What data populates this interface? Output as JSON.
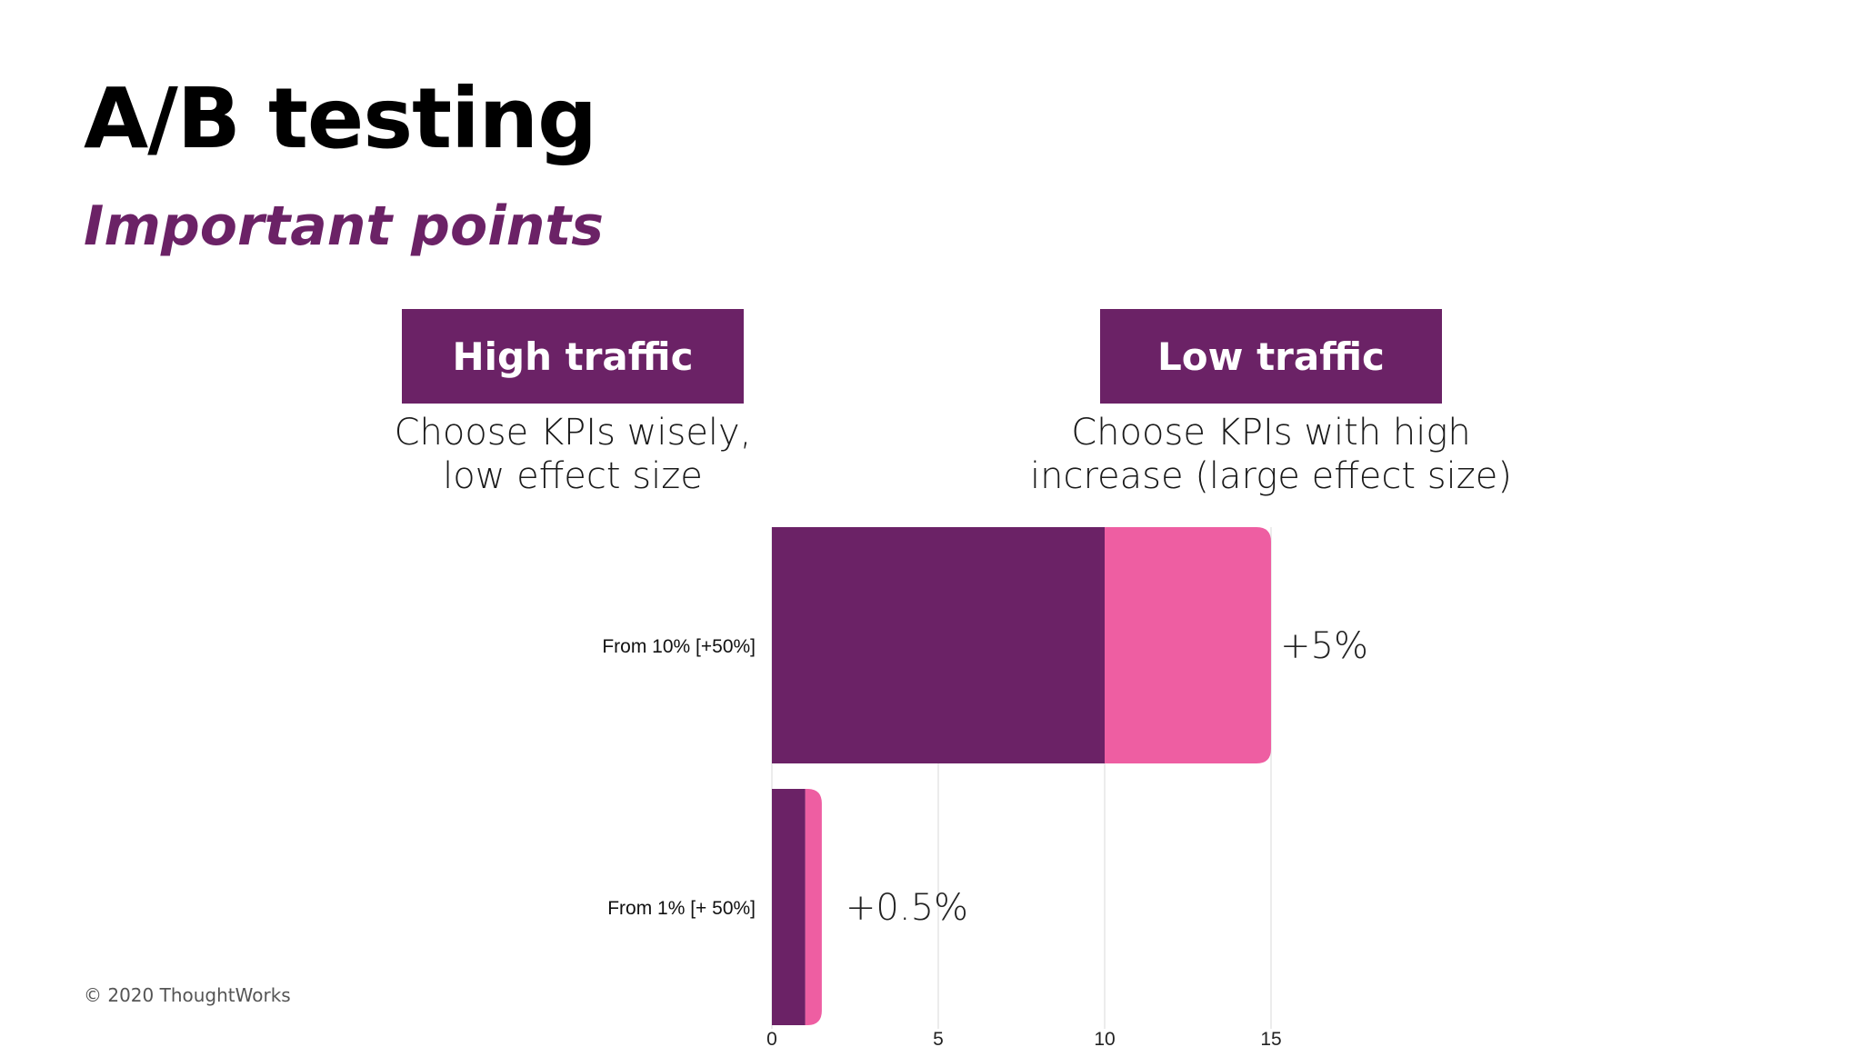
{
  "slide": {
    "title": "A/B testing",
    "subtitle": "Important points",
    "copyright": "© 2020 ThoughtWorks"
  },
  "panels": {
    "high": {
      "tag": "High traffic",
      "line1": "Choose KPIs wisely,",
      "line2": "low effect size"
    },
    "low": {
      "tag": "Low traffic",
      "line1": "Choose KPIs with high",
      "line2": "increase (large effect size)"
    }
  },
  "colors": {
    "accent": "#6b2266",
    "baseline": "#6b2266",
    "increase": "#ee5ea2",
    "grid": "#e6e6e6"
  },
  "chart_data": {
    "type": "bar",
    "orientation": "horizontal",
    "stacked": true,
    "categories": [
      "From 10% [+50%]",
      "From 1% [+ 50%]"
    ],
    "series": [
      {
        "values": [
          10,
          1
        ]
      },
      {
        "values": [
          5,
          0.5
        ]
      }
    ],
    "data_labels": [
      "+5%",
      "+0.5%"
    ],
    "xlim": [
      0,
      15
    ],
    "xticks": [
      "0",
      "5",
      "10",
      "15"
    ],
    "grid": true
  }
}
